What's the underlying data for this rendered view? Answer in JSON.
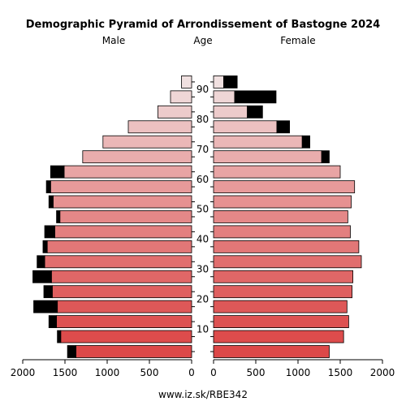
{
  "chart_data": {
    "type": "bar",
    "title": "Demographic Pyramid of Arrondissement of Bastogne 2024",
    "left_label": "Male",
    "center_label": "Age",
    "right_label": "Female",
    "footer": "www.iz.sk/RBE342",
    "age_ticks": [
      "10",
      "20",
      "30",
      "40",
      "50",
      "60",
      "70",
      "80",
      "90"
    ],
    "x_ticks_left": [
      "2000",
      "1500",
      "1000",
      "500",
      "0"
    ],
    "x_ticks_right": [
      "0",
      "500",
      "1000",
      "1500",
      "2000"
    ],
    "xlim": [
      0,
      2000
    ],
    "age_groups": [
      "0-4",
      "5-9",
      "10-14",
      "15-19",
      "20-24",
      "25-29",
      "30-34",
      "35-39",
      "40-44",
      "45-49",
      "50-54",
      "55-59",
      "60-64",
      "65-69",
      "70-74",
      "75-79",
      "80-84",
      "85-89",
      "90+"
    ],
    "series": [
      {
        "name": "Male",
        "values": [
          1370,
          1550,
          1600,
          1590,
          1650,
          1660,
          1740,
          1710,
          1620,
          1560,
          1640,
          1670,
          1510,
          1290,
          1050,
          750,
          400,
          250,
          120
        ],
        "excess": [
          100,
          40,
          90,
          280,
          100,
          220,
          90,
          50,
          120,
          40,
          50,
          50,
          160,
          0,
          0,
          0,
          0,
          0,
          0
        ]
      },
      {
        "name": "Female",
        "values": [
          1370,
          1540,
          1600,
          1580,
          1640,
          1650,
          1750,
          1720,
          1620,
          1590,
          1630,
          1670,
          1500,
          1280,
          1050,
          750,
          400,
          250,
          120
        ],
        "excess": [
          0,
          0,
          0,
          0,
          0,
          0,
          0,
          0,
          0,
          0,
          0,
          0,
          0,
          90,
          90,
          150,
          180,
          490,
          160
        ]
      }
    ],
    "colors": {
      "young": "#dc4848",
      "old": "#f0e0e0",
      "excess": "#000000",
      "outline": "#000000"
    }
  }
}
